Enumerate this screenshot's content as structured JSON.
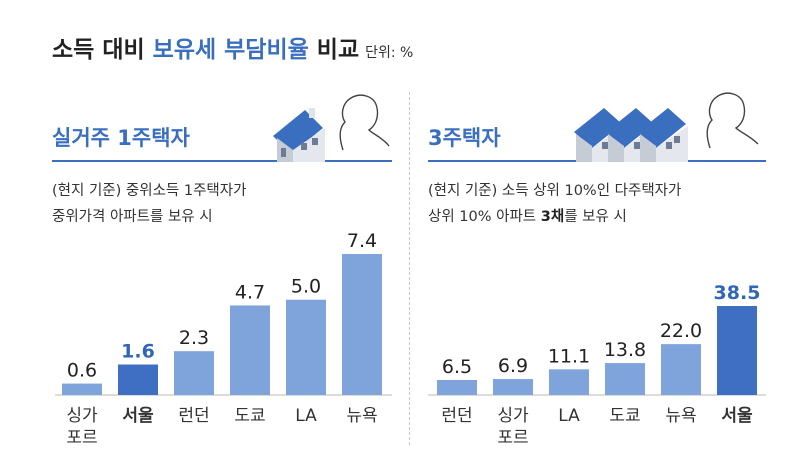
{
  "header": {
    "title_part1": "소득 대비 ",
    "title_highlight": "보유세 부담비율",
    "title_part2": " 비교",
    "unit": "단위: %"
  },
  "colors": {
    "accent": "#3a6fc0",
    "bar": "#7fa4dc",
    "bar_highlight": "#3e6fc3",
    "value_highlight": "#2f66b8"
  },
  "panels": [
    {
      "title": "실거주 1주택자",
      "icon": "single-house-with-person-illustration",
      "desc_line1": "(현지 기준) 중위소득 1주택자가",
      "desc_line2_pre": "중위가격 아파트를 보유 시",
      "desc_line2_bold": "",
      "desc_line2_post": ""
    },
    {
      "title": "3주택자",
      "icon": "three-houses-with-person-illustration",
      "desc_line1": "(현지 기준) 소득 상위 10%인 다주택자가",
      "desc_line2_pre": "상위 10% 아파트 ",
      "desc_line2_bold": "3채",
      "desc_line2_post": "를 보유 시"
    }
  ],
  "chart_data": [
    {
      "type": "bar",
      "title": "실거주 1주택자",
      "categories": [
        "싱가\n포르",
        "서울",
        "런던",
        "도쿄",
        "LA",
        "뉴욕"
      ],
      "values": [
        0.6,
        1.6,
        2.3,
        4.7,
        5.0,
        7.4
      ],
      "value_labels": [
        "0.6",
        "1.6",
        "2.3",
        "4.7",
        "5.0",
        "7.4"
      ],
      "highlight": "서울",
      "ylim": [
        0,
        7.4
      ]
    },
    {
      "type": "bar",
      "title": "3주택자",
      "categories": [
        "런던",
        "싱가\n포르",
        "LA",
        "도쿄",
        "뉴욕",
        "서울"
      ],
      "values": [
        6.5,
        6.9,
        11.1,
        13.8,
        22.0,
        38.5
      ],
      "value_labels": [
        "6.5",
        "6.9",
        "11.1",
        "13.8",
        "22.0",
        "38.5"
      ],
      "highlight": "서울",
      "ylim": [
        0,
        38.5
      ]
    }
  ]
}
